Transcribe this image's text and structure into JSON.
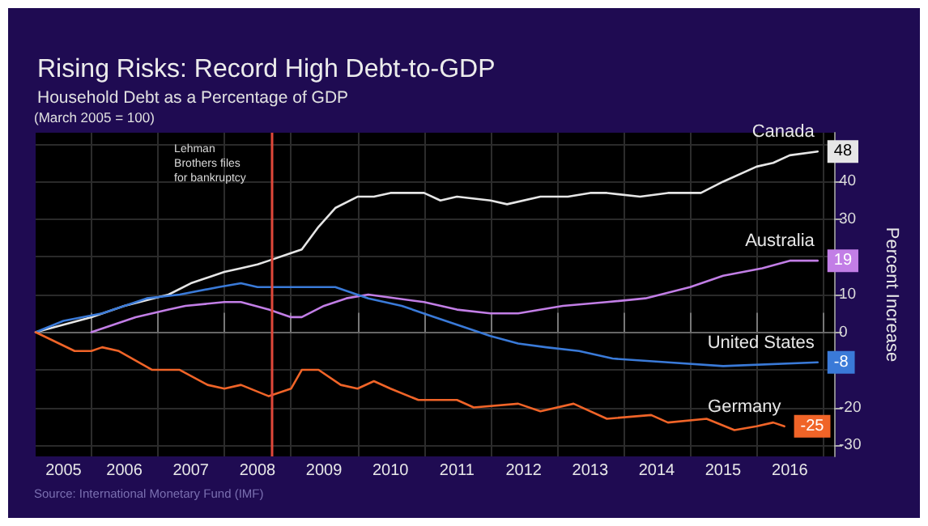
{
  "chart_data": {
    "type": "line",
    "title": "Rising Risks: Record High Debt-to-GDP",
    "subtitle": "Household Debt as a Percentage of GDP",
    "ylabel": "Percent Increase",
    "annotations": [
      "(March 2005 = 100)",
      "Source: International Monetary Fund (IMF)"
    ],
    "xlim": [
      "2005-03",
      "2017-03"
    ],
    "xticks": [
      {
        "value": "2005-08",
        "label": "2005"
      },
      {
        "value": "2006-07",
        "label": "2006"
      },
      {
        "value": "2007-07",
        "label": "2007"
      },
      {
        "value": "2008-07",
        "label": "2008"
      },
      {
        "value": "2009-07",
        "label": "2009"
      },
      {
        "value": "2010-07",
        "label": "2010"
      },
      {
        "value": "2011-07",
        "label": "2011"
      },
      {
        "value": "2012-07",
        "label": "2012"
      },
      {
        "value": "2013-07",
        "label": "2013"
      },
      {
        "value": "2014-07",
        "label": "2014"
      },
      {
        "value": "2015-07",
        "label": "2015"
      },
      {
        "value": "2016-07",
        "label": "2016"
      },
      {
        "value": "2006-01",
        "label": null
      },
      {
        "value": "2007-01",
        "label": null
      },
      {
        "value": "2008-01",
        "label": null
      },
      {
        "value": "2009-01",
        "label": null
      },
      {
        "value": "2010-01",
        "label": null
      },
      {
        "value": "2011-01",
        "label": null
      },
      {
        "value": "2012-01",
        "label": null
      },
      {
        "value": "2013-01",
        "label": null
      },
      {
        "value": "2014-01",
        "label": null
      },
      {
        "value": "2015-01",
        "label": null
      },
      {
        "value": "2016-01",
        "label": null
      },
      {
        "value": "2017-01",
        "label": null
      }
    ],
    "ylim": [
      -33,
      53
    ],
    "yticks": [
      -30,
      -20,
      {
        "value": -10,
        "label": null
      },
      0,
      10,
      {
        "value": 20,
        "label": null
      },
      30,
      40,
      {
        "value": 50,
        "label": null
      }
    ],
    "grid": true,
    "legend": false,
    "line_style": "solid",
    "ref_lines": [
      {
        "axis": "x",
        "value": "2008-09-15",
        "label": "Lehman Brothers files for bankruptcy",
        "color": "#e0483a"
      }
    ],
    "series": [
      {
        "name": "Canada",
        "color": "#e6e6e6",
        "x": [
          "2005-03",
          "2006-01",
          "2006-07",
          "2007-03",
          "2007-07",
          "2008-01",
          "2008-04",
          "2008-07",
          "2008-09",
          "2009-01",
          "2009-03",
          "2009-06",
          "2009-09",
          "2010-01",
          "2010-04",
          "2010-07",
          "2011-01",
          "2011-04",
          "2011-07",
          "2012-01",
          "2012-04",
          "2012-10",
          "2013-03",
          "2013-07",
          "2013-10",
          "2014-04",
          "2014-09",
          "2015-03",
          "2015-07",
          "2016-01",
          "2016-04",
          "2016-07",
          "2016-12"
        ],
        "values": [
          0,
          4,
          7,
          10,
          13,
          16,
          17,
          18,
          19,
          21,
          22,
          28,
          33,
          36,
          36,
          37,
          37,
          35,
          36,
          35,
          34,
          36,
          36,
          37,
          37,
          36,
          37,
          37,
          40,
          44,
          45,
          47,
          48
        ],
        "value_labels": [
          null,
          null,
          null,
          null,
          null,
          null,
          null,
          null,
          null,
          null,
          null,
          null,
          null,
          null,
          null,
          null,
          null,
          null,
          null,
          null,
          null,
          null,
          null,
          null,
          null,
          null,
          null,
          null,
          null,
          null,
          null,
          null,
          "48"
        ]
      },
      {
        "name": "Australia",
        "color": "#c27ee6",
        "x": [
          "2006-01",
          "2006-09",
          "2007-03",
          "2007-06",
          "2008-01",
          "2008-04",
          "2008-09",
          "2009-01",
          "2009-03",
          "2009-07",
          "2009-11",
          "2010-03",
          "2011-01",
          "2011-07",
          "2012-01",
          "2012-06",
          "2013-02",
          "2013-10",
          "2014-05",
          "2015-01",
          "2015-07",
          "2016-02",
          "2016-07",
          "2016-12"
        ],
        "values": [
          0,
          4,
          6,
          7,
          8,
          8,
          6,
          4,
          4,
          7,
          9,
          10,
          8,
          6,
          5,
          5,
          7,
          8,
          9,
          12,
          15,
          17,
          19,
          19
        ],
        "value_labels": [
          null,
          null,
          null,
          null,
          null,
          null,
          null,
          null,
          null,
          null,
          null,
          null,
          null,
          null,
          null,
          null,
          null,
          null,
          null,
          null,
          null,
          null,
          null,
          "19"
        ]
      },
      {
        "name": "United States",
        "color": "#3a7ad8",
        "x": [
          "2005-03",
          "2005-08",
          "2006-03",
          "2006-11",
          "2007-05",
          "2007-12",
          "2008-04",
          "2008-07",
          "2008-09",
          "2009-03",
          "2009-09",
          "2010-03",
          "2010-09",
          "2011-03",
          "2011-07",
          "2012-01",
          "2012-06",
          "2012-11",
          "2013-05",
          "2013-11",
          "2014-09",
          "2015-07",
          "2016-12"
        ],
        "values": [
          0,
          3,
          5,
          9,
          10,
          12,
          13,
          12,
          12,
          12,
          12,
          9,
          7,
          4,
          2,
          -1,
          -3,
          -4,
          -5,
          -7,
          -8,
          -9,
          -8
        ],
        "value_labels": [
          null,
          null,
          null,
          null,
          null,
          null,
          null,
          null,
          null,
          null,
          null,
          null,
          null,
          null,
          null,
          null,
          null,
          null,
          null,
          null,
          null,
          null,
          "-8"
        ]
      },
      {
        "name": "Germany",
        "color": "#f06428",
        "x": [
          "2005-03",
          "2005-10",
          "2006-01",
          "2006-03",
          "2006-06",
          "2006-12",
          "2007-05",
          "2007-10",
          "2008-01",
          "2008-04",
          "2008-09",
          "2009-01",
          "2009-03",
          "2009-06",
          "2009-10",
          "2010-01",
          "2010-04",
          "2010-07",
          "2010-12",
          "2011-03",
          "2011-07",
          "2011-10",
          "2012-06",
          "2012-10",
          "2013-04",
          "2013-10",
          "2014-06",
          "2014-09",
          "2015-04",
          "2015-09",
          "2016-01",
          "2016-04",
          "2016-06"
        ],
        "values": [
          0,
          -5,
          -5,
          -4,
          -5,
          -10,
          -10,
          -14,
          -15,
          -14,
          -17,
          -15,
          -10,
          -10,
          -14,
          -15,
          -13,
          -15,
          -18,
          -18,
          -18,
          -20,
          -19,
          -21,
          -19,
          -23,
          -22,
          -24,
          -23,
          -26,
          -25,
          -24,
          -25
        ],
        "value_labels": [
          null,
          null,
          null,
          null,
          null,
          null,
          null,
          null,
          null,
          null,
          null,
          null,
          null,
          null,
          null,
          null,
          null,
          null,
          null,
          null,
          null,
          null,
          null,
          null,
          null,
          null,
          null,
          null,
          null,
          null,
          null,
          null,
          "-25"
        ]
      }
    ]
  }
}
